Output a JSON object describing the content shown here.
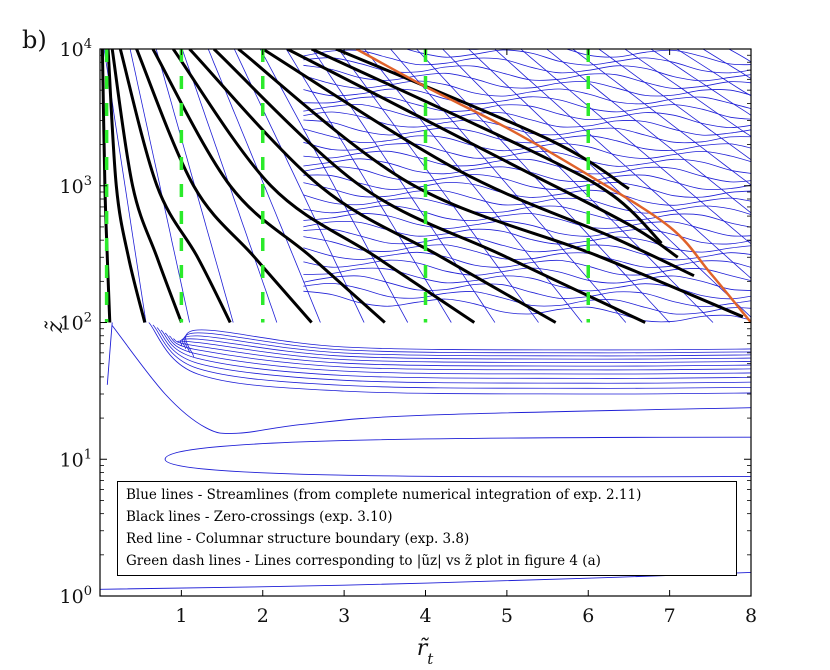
{
  "panel_label": "b)",
  "chart_data": {
    "type": "line",
    "title": "",
    "xlabel": "r̃_t",
    "ylabel": "z̃",
    "xlim": [
      0,
      8
    ],
    "ylim": [
      1,
      10000
    ],
    "y_scale": "log",
    "x_ticks": [
      1,
      2,
      3,
      4,
      5,
      6,
      7,
      8
    ],
    "x_tick_labels": [
      "1",
      "2",
      "3",
      "4",
      "5",
      "6",
      "7",
      "8"
    ],
    "y_ticks": [
      1,
      10,
      100,
      1000,
      10000
    ],
    "y_tick_labels": [
      {
        "base": "10",
        "exp": "0"
      },
      {
        "base": "10",
        "exp": "1"
      },
      {
        "base": "10",
        "exp": "2"
      },
      {
        "base": "10",
        "exp": "3"
      },
      {
        "base": "10",
        "exp": "4"
      }
    ],
    "legend_position": "bottom",
    "legend": [
      "Blue lines - Streamlines (from complete numerical integration of exp. 2.11)",
      "Black lines - Zero-crossings (exp. 3.10)",
      "Red line - Columnar structure boundary (exp. 3.8)",
      "Green dash lines - Lines corresponding to |ũz| vs z̃ plot in figure 4 (a)"
    ],
    "colors": {
      "streamlines": "#1f1fd6",
      "zero_crossings": "#000000",
      "boundary": "#e0622a",
      "dash_lines": "#2bea2b"
    },
    "series": [
      {
        "kind": "boundary",
        "x": [
          3.15,
          4,
          5,
          6,
          7,
          7.5,
          8
        ],
        "y": [
          10000,
          5300,
          2650,
          1200,
          500,
          230,
          100
        ]
      },
      {
        "kind": "zero_crossing",
        "x": [
          0.03,
          0.06,
          0.09,
          0.12
        ],
        "y": [
          10000,
          1000,
          300,
          100
        ]
      },
      {
        "kind": "zero_crossing",
        "x": [
          0.1,
          0.2,
          0.35,
          0.55
        ],
        "y": [
          10000,
          1000,
          300,
          100
        ]
      },
      {
        "kind": "zero_crossing",
        "x": [
          0.15,
          0.4,
          0.7,
          1.0
        ],
        "y": [
          10000,
          1000,
          300,
          100
        ]
      },
      {
        "kind": "zero_crossing",
        "x": [
          0.25,
          0.7,
          1.2,
          1.6
        ],
        "y": [
          10000,
          1000,
          300,
          100
        ]
      },
      {
        "kind": "zero_crossing",
        "x": [
          0.45,
          1.15,
          1.9,
          2.6
        ],
        "y": [
          10000,
          1000,
          300,
          100
        ]
      },
      {
        "kind": "zero_crossing",
        "x": [
          0.65,
          1.6,
          2.6,
          3.5
        ],
        "y": [
          10000,
          1000,
          300,
          100
        ]
      },
      {
        "kind": "zero_crossing",
        "x": [
          0.9,
          2.1,
          3.4,
          4.6
        ],
        "y": [
          10000,
          1000,
          300,
          100
        ]
      },
      {
        "kind": "zero_crossing",
        "x": [
          1.1,
          2.7,
          4.2,
          5.6
        ],
        "y": [
          10000,
          1000,
          300,
          100
        ]
      },
      {
        "kind": "zero_crossing",
        "x": [
          1.4,
          3.2,
          5.0,
          6.7
        ],
        "y": [
          10000,
          1000,
          300,
          100
        ]
      },
      {
        "kind": "zero_crossing",
        "x": [
          1.7,
          3.8,
          6.1,
          7.9
        ],
        "y": [
          10000,
          1050,
          310,
          110
        ]
      },
      {
        "kind": "zero_crossing",
        "x": [
          2.0,
          4.4,
          6.3,
          7.3
        ],
        "y": [
          10000,
          1300,
          420,
          220
        ]
      },
      {
        "kind": "zero_crossing",
        "x": [
          2.3,
          5.0,
          6.5,
          7.1
        ],
        "y": [
          10000,
          1500,
          520,
          300
        ]
      },
      {
        "kind": "zero_crossing",
        "x": [
          2.6,
          5.3,
          6.3,
          6.9
        ],
        "y": [
          10000,
          1800,
          850,
          380
        ]
      },
      {
        "kind": "zero_crossing",
        "x": [
          2.9,
          5.5,
          6.5
        ],
        "y": [
          10000,
          2200,
          950
        ]
      }
    ],
    "dash_x": [
      0.02,
      1,
      2,
      4,
      6
    ]
  }
}
